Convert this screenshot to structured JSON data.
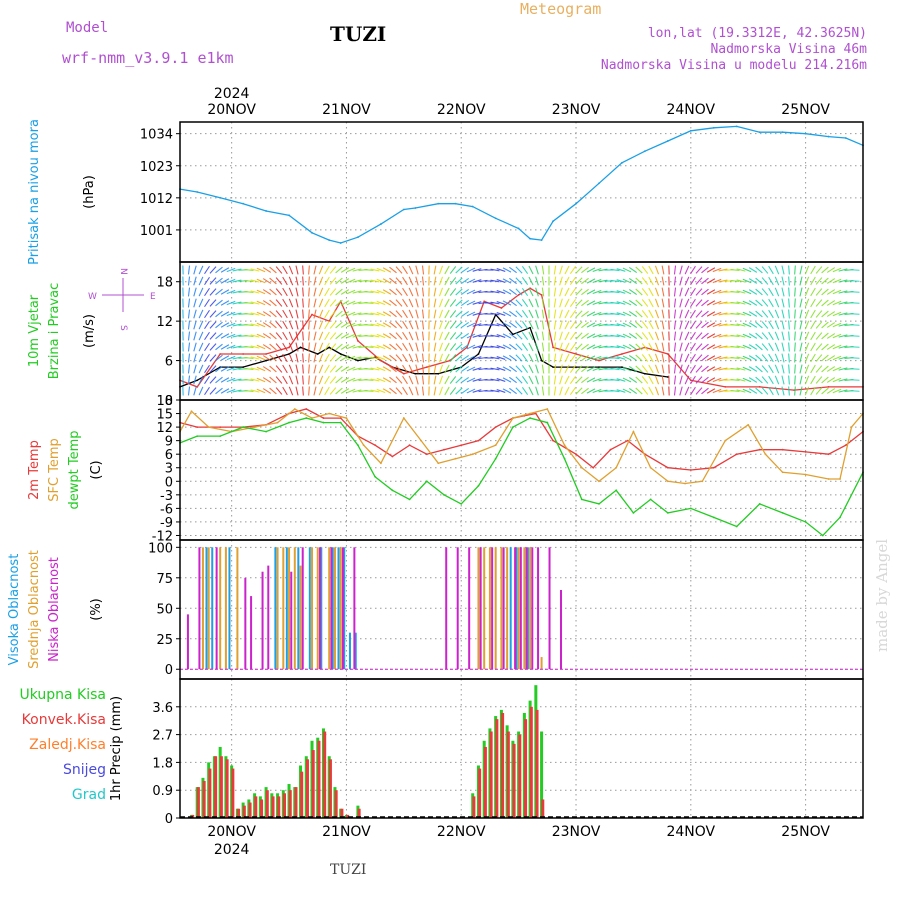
{
  "header": {
    "model_label": "Model",
    "model_name": "wrf-nmm_v3.9.1  e1km",
    "station": "TUZI",
    "title": "Meteogram",
    "coords": "lon,lat (19.3312E, 42.3625N)",
    "elevation": "Nadmorska Visina 46m",
    "model_elevation": "Nadmorska Visina u modelu 214.216m"
  },
  "footer": {
    "station": "TUZI",
    "credit": "made by Angel"
  },
  "colors": {
    "pressure": "#1aa0e6",
    "wind_speed": "#000000",
    "gust": "#e83a3a",
    "t2m": "#e83a3a",
    "tsfc": "#e0a030",
    "dewpt": "#22cc22",
    "high_cloud": "#1aa0e6",
    "mid_cloud": "#e0a030",
    "low_cloud": "#cc22cc",
    "total_precip": "#22cc22",
    "conv_precip": "#e83a3a",
    "frozen": "#ff7f2a",
    "snow": "#4a4ae0",
    "hail": "#22c8c8"
  },
  "chart_data": {
    "type": "line",
    "year": "2024",
    "x_ticks": [
      "20NOV",
      "21NOV",
      "22NOV",
      "23NOV",
      "24NOV",
      "25NOV"
    ],
    "x_range_days": [
      19.55,
      25.5
    ],
    "panels": [
      {
        "id": "pressure",
        "ylabels": [
          "Pritisak na nivou mora",
          "(hPa)"
        ],
        "ylim": [
          990,
          1038
        ],
        "yticks": [
          1001,
          1012,
          1023,
          1034
        ],
        "series": [
          {
            "name": "Pritisak na nivou mora",
            "color": "#1aa0e6",
            "x": [
              19.55,
              19.7,
              19.9,
              20.1,
              20.3,
              20.5,
              20.7,
              20.85,
              20.95,
              21.1,
              21.3,
              21.5,
              21.6,
              21.8,
              21.95,
              22.1,
              22.3,
              22.5,
              22.6,
              22.7,
              22.8,
              23.0,
              23.2,
              23.4,
              23.6,
              23.8,
              24.0,
              24.2,
              24.4,
              24.6,
              24.8,
              25.0,
              25.2,
              25.35,
              25.5
            ],
            "y": [
              1015,
              1014,
              1012,
              1010,
              1007.5,
              1006,
              1000,
              997.5,
              996.5,
              998.5,
              1003,
              1008,
              1008.5,
              1010,
              1010,
              1009,
              1005,
              1001.5,
              998,
              997.5,
              1004,
              1010,
              1017,
              1024,
              1028,
              1031.5,
              1035,
              1036,
              1036.5,
              1034.5,
              1034.5,
              1034,
              1033,
              1032.5,
              1030
            ]
          }
        ]
      },
      {
        "id": "wind",
        "ylabels": [
          "10m Vjetar",
          "Brzina i Pravac",
          "(m/s)"
        ],
        "direction_legend": [
          "W",
          "N",
          "E",
          "S"
        ],
        "ylim": [
          0,
          21
        ],
        "yticks": [
          0,
          6,
          12,
          18
        ],
        "series": [
          {
            "name": "Brzina",
            "color": "#000000",
            "x": [
              19.55,
              19.7,
              19.9,
              20.1,
              20.3,
              20.5,
              20.6,
              20.75,
              20.85,
              20.95,
              21.1,
              21.25,
              21.4,
              21.6,
              21.8,
              22.0,
              22.15,
              22.3,
              22.45,
              22.6,
              22.7,
              22.8,
              23.0,
              23.2,
              23.4,
              23.6,
              23.8
            ],
            "y": [
              2,
              3,
              5,
              5,
              6,
              7,
              8,
              7,
              8,
              7,
              6,
              6.5,
              5,
              4,
              4,
              5,
              7,
              13,
              10,
              11,
              6,
              5,
              5,
              5,
              5,
              4,
              3.5
            ]
          },
          {
            "name": "Udari",
            "color": "#e83a3a",
            "x": [
              19.55,
              19.7,
              19.9,
              20.1,
              20.3,
              20.5,
              20.7,
              20.85,
              20.95,
              21.1,
              21.3,
              21.5,
              21.7,
              21.9,
              22.05,
              22.2,
              22.35,
              22.5,
              22.6,
              22.7,
              22.8,
              23.0,
              23.2,
              23.4,
              23.6,
              23.8,
              24.0,
              24.3,
              24.6,
              24.9,
              25.2,
              25.5
            ],
            "y": [
              3,
              2,
              7,
              7,
              7,
              8,
              13,
              12,
              15,
              9,
              6,
              4,
              5,
              6,
              8,
              15,
              14,
              16,
              17,
              16,
              8,
              7,
              6,
              7,
              8,
              7,
              3,
              2,
              2,
              1.5,
              2,
              2
            ]
          }
        ]
      },
      {
        "id": "temperature",
        "ylabels": [
          "2m Temp",
          "SFC Temp",
          "dewpt Temp",
          "(C)"
        ],
        "ylim": [
          -13,
          18
        ],
        "yticks": [
          -12,
          -9,
          -6,
          -3,
          0,
          3,
          6,
          9,
          12,
          15,
          18
        ],
        "series": [
          {
            "name": "2m Temp",
            "color": "#e83a3a",
            "x": [
              19.55,
              19.7,
              19.9,
              20.1,
              20.3,
              20.5,
              20.65,
              20.8,
              20.95,
              21.1,
              21.25,
              21.4,
              21.55,
              21.7,
              21.85,
              22.0,
              22.15,
              22.3,
              22.45,
              22.55,
              22.65,
              22.8,
              23.0,
              23.15,
              23.3,
              23.45,
              23.6,
              23.8,
              24.0,
              24.2,
              24.4,
              24.6,
              24.8,
              25.0,
              25.2,
              25.35,
              25.5
            ],
            "y": [
              13,
              12,
              12,
              12,
              12.5,
              15,
              16,
              14,
              14,
              10,
              8,
              5.5,
              8,
              6,
              7,
              8,
              9,
              12,
              14,
              14.5,
              15,
              9,
              6,
              3,
              7,
              9,
              6,
              3,
              2.5,
              3,
              6,
              7,
              7,
              6.5,
              6,
              8,
              11
            ]
          },
          {
            "name": "SFC Temp",
            "color": "#e0a030",
            "x": [
              19.55,
              19.65,
              19.8,
              20.0,
              20.2,
              20.4,
              20.55,
              20.7,
              20.85,
              21.0,
              21.15,
              21.3,
              21.5,
              21.65,
              21.8,
              21.95,
              22.1,
              22.3,
              22.45,
              22.6,
              22.75,
              22.9,
              23.05,
              23.2,
              23.35,
              23.5,
              23.65,
              23.8,
              23.95,
              24.1,
              24.3,
              24.5,
              24.65,
              24.8,
              25.0,
              25.2,
              25.3,
              25.4,
              25.5
            ],
            "y": [
              11,
              15.5,
              12,
              11,
              12,
              13,
              16,
              14,
              15,
              14,
              8,
              4,
              14,
              9,
              4,
              5,
              6,
              8,
              14,
              15,
              16,
              8,
              3,
              0,
              3,
              11,
              3,
              0,
              -0.5,
              0,
              9,
              12.5,
              6,
              2,
              1.5,
              0.5,
              0.5,
              12,
              15
            ]
          },
          {
            "name": "dewpt Temp",
            "color": "#22cc22",
            "x": [
              19.55,
              19.7,
              19.9,
              20.1,
              20.3,
              20.5,
              20.65,
              20.8,
              20.95,
              21.1,
              21.25,
              21.4,
              21.55,
              21.7,
              21.85,
              22.0,
              22.15,
              22.3,
              22.45,
              22.6,
              22.75,
              22.9,
              23.05,
              23.2,
              23.35,
              23.5,
              23.65,
              23.8,
              24.0,
              24.2,
              24.4,
              24.6,
              24.8,
              25.0,
              25.15,
              25.3,
              25.5
            ],
            "y": [
              8.5,
              10,
              10,
              12,
              11,
              13,
              14,
              13,
              13,
              8,
              1,
              -2,
              -4,
              0,
              -3,
              -5,
              -1,
              5,
              12,
              14,
              13,
              5,
              -4,
              -5,
              -2,
              -7,
              -4,
              -7,
              -6,
              -8,
              -10,
              -5,
              -7,
              -9,
              -12,
              -8,
              2
            ]
          }
        ]
      },
      {
        "id": "clouds",
        "ylabels": [
          "Visoka Oblacnost",
          "Srednja Oblacnost",
          "Niska Oblacnost",
          "(%)"
        ],
        "ylim": [
          -8,
          106
        ],
        "yticks": [
          0,
          25,
          50,
          75,
          100
        ],
        "bars": [
          {
            "name": "Visoka Oblacnost",
            "color": "#1aa0e6",
            "x": [
              19.8,
              19.85,
              20.0,
              20.4,
              20.5,
              20.6,
              20.7,
              20.8,
              20.9,
              20.95,
              21.0,
              21.05,
              21.1,
              22.45,
              22.5,
              22.6
            ],
            "y": [
              100,
              100,
              100,
              100,
              100,
              100,
              100,
              100,
              100,
              100,
              100,
              30,
              30,
              100,
              100,
              100
            ]
          },
          {
            "name": "Srednja Oblacnost",
            "color": "#e0a030",
            "x": [
              19.75,
              19.8,
              19.9,
              19.95,
              20.05,
              20.4,
              20.45,
              20.5,
              20.55,
              20.6,
              20.7,
              20.75,
              20.85,
              20.9,
              20.95,
              22.15,
              22.2,
              22.25,
              22.3,
              22.35,
              22.4,
              22.5,
              22.55,
              22.6,
              22.7
            ],
            "y": [
              100,
              100,
              100,
              100,
              100,
              100,
              100,
              100,
              100,
              85,
              100,
              100,
              100,
              100,
              100,
              100,
              100,
              100,
              100,
              100,
              100,
              100,
              100,
              100,
              10
            ]
          },
          {
            "name": "Niska Oblacnost",
            "color": "#cc22cc",
            "x": [
              19.6,
              19.7,
              19.85,
              20.1,
              20.15,
              20.25,
              20.3,
              20.5,
              20.6,
              20.75,
              20.85,
              20.95,
              21.05,
              21.85,
              21.95,
              22.05,
              22.15,
              22.25,
              22.35,
              22.45,
              22.5,
              22.55,
              22.6,
              22.65,
              22.75,
              22.85
            ],
            "y": [
              45,
              100,
              100,
              75,
              60,
              80,
              85,
              80,
              100,
              100,
              100,
              100,
              100,
              100,
              100,
              100,
              100,
              100,
              100,
              100,
              100,
              100,
              100,
              100,
              100,
              65
            ]
          }
        ]
      },
      {
        "id": "precip",
        "ylabels": [
          "1hr Precip (mm)"
        ],
        "legend": [
          "Ukupna Kisa",
          "Konvek.Kisa",
          "Zaledj.Kisa",
          "Snijeg",
          "Grad"
        ],
        "ylim": [
          0,
          4.5
        ],
        "yticks": [
          0,
          0.9,
          1.8,
          2.7,
          3.6
        ],
        "bars": [
          {
            "name": "Ukupna Kisa",
            "color": "#22cc22",
            "x": [
              19.65,
              19.7,
              19.75,
              19.8,
              19.85,
              19.9,
              19.95,
              20.0,
              20.05,
              20.1,
              20.15,
              20.2,
              20.25,
              20.3,
              20.35,
              20.4,
              20.45,
              20.5,
              20.55,
              20.6,
              20.65,
              20.7,
              20.75,
              20.8,
              20.85,
              20.9,
              20.95,
              21.0,
              21.1,
              22.1,
              22.15,
              22.2,
              22.25,
              22.3,
              22.35,
              22.4,
              22.45,
              22.5,
              22.55,
              22.6,
              22.65,
              22.7
            ],
            "y": [
              0.1,
              1.0,
              1.3,
              1.8,
              2.0,
              2.3,
              2.0,
              1.7,
              0.3,
              0.5,
              0.6,
              0.8,
              0.7,
              1.0,
              0.8,
              0.8,
              0.9,
              1.1,
              1.0,
              1.7,
              2.0,
              2.5,
              2.6,
              2.9,
              2.0,
              1.0,
              0.3,
              0.1,
              0.4,
              0.8,
              1.7,
              2.5,
              2.9,
              3.3,
              3.5,
              3.0,
              2.5,
              2.8,
              3.4,
              3.8,
              4.3,
              2.8
            ]
          },
          {
            "name": "Konvek.Kisa",
            "color": "#e83a3a",
            "x": [
              19.65,
              19.7,
              19.75,
              19.8,
              19.85,
              19.9,
              19.95,
              20.0,
              20.05,
              20.1,
              20.15,
              20.2,
              20.25,
              20.3,
              20.35,
              20.4,
              20.45,
              20.5,
              20.55,
              20.6,
              20.65,
              20.7,
              20.75,
              20.8,
              20.85,
              20.9,
              20.95,
              21.0,
              21.1,
              22.1,
              22.15,
              22.2,
              22.25,
              22.3,
              22.35,
              22.4,
              22.45,
              22.5,
              22.55,
              22.6,
              22.65,
              22.7
            ],
            "y": [
              0.1,
              1.0,
              1.2,
              1.6,
              2.0,
              2.0,
              1.9,
              1.6,
              0.3,
              0.4,
              0.5,
              0.7,
              0.6,
              0.9,
              0.7,
              0.7,
              0.8,
              0.9,
              1.0,
              1.5,
              1.9,
              2.2,
              2.5,
              2.8,
              1.9,
              0.9,
              0.3,
              0.1,
              0.3,
              0.7,
              1.6,
              2.3,
              2.8,
              3.2,
              3.4,
              2.8,
              2.4,
              2.7,
              3.2,
              3.6,
              3.5,
              0.6
            ]
          }
        ]
      }
    ]
  }
}
